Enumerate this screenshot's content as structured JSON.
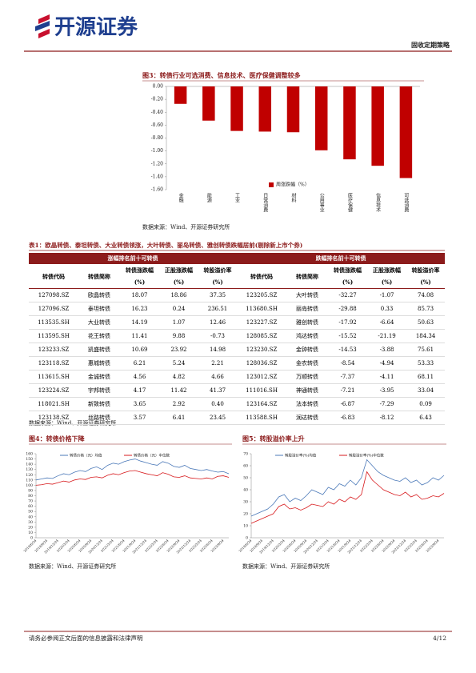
{
  "header": {
    "logo": "开源证券",
    "section": "固收定期策略"
  },
  "chart_data": [
    {
      "type": "bar",
      "title": "图3：转债行业可选消费、信息技术、医疗保健调整较多",
      "source": "数据来源：Wind、开源证券研究所",
      "categories": [
        "金融",
        "能源",
        "工业",
        "日常消费",
        "材料",
        "公用事业",
        "医疗保健",
        "信息技术",
        "可选消费"
      ],
      "series": [
        {
          "name": "周涨跌幅（%）",
          "color": "#c00000",
          "values": [
            -0.27,
            -0.53,
            -0.69,
            -0.7,
            -0.71,
            -0.99,
            -1.13,
            -1.23,
            -1.42
          ]
        }
      ],
      "ylim": [
        -1.6,
        0
      ],
      "yticks": [
        {
          "value": 0,
          "label": "0.00"
        },
        {
          "value": -0.2,
          "label": "-0.20"
        },
        {
          "value": -0.4,
          "label": "-0.40"
        },
        {
          "value": -0.6,
          "label": "-0.60"
        },
        {
          "value": -0.8,
          "label": "-0.80"
        },
        {
          "value": -1,
          "label": "-1.00"
        },
        {
          "value": -1.2,
          "label": "-1.20"
        },
        {
          "value": -1.4,
          "label": "-1.40"
        },
        {
          "value": -1.6,
          "label": "-1.60"
        }
      ]
    },
    {
      "type": "line",
      "title": "图4：转债价格下降",
      "source": "数据来源：Wind、开源证券研究所",
      "categories": [
        "2019/6/24",
        null,
        "2019/9/24",
        null,
        "2019/12/24",
        null,
        "2020/3/24",
        null,
        "2020/6/24",
        null,
        "2020/9/24",
        null,
        "2020/12/24",
        null,
        "2021/3/24",
        null,
        "2021/6/24",
        null,
        "2021/9/24",
        null,
        "2021/12/24",
        null,
        "2022/3/24",
        null,
        "2022/6/24",
        null,
        "2022/9/24",
        null,
        "2022/12/24",
        null,
        "2023/3/24",
        null,
        "2023/6/24",
        null,
        "2023/9/24",
        null
      ],
      "series": [
        {
          "name": "转债价格（元）均值",
          "color": "#4a78b8",
          "values": [
            110,
            112,
            114,
            113,
            118,
            122,
            120,
            125,
            128,
            126,
            132,
            135,
            130,
            138,
            142,
            140,
            145,
            148,
            150,
            146,
            143,
            140,
            138,
            145,
            142,
            136,
            134,
            138,
            132,
            130,
            128,
            130,
            127,
            125,
            126,
            122
          ]
        },
        {
          "name": "转债价格（元）中位数",
          "color": "#d7191c",
          "values": [
            100,
            101,
            103,
            102,
            105,
            108,
            106,
            110,
            112,
            111,
            115,
            116,
            114,
            119,
            122,
            120,
            124,
            127,
            128,
            125,
            122,
            120,
            118,
            124,
            121,
            116,
            115,
            118,
            114,
            113,
            112,
            114,
            112,
            117,
            118,
            115
          ]
        }
      ],
      "ylim": [
        0,
        160
      ],
      "yticks": [
        0,
        10,
        20,
        30,
        40,
        50,
        60,
        70,
        80,
        90,
        100,
        110,
        120,
        130,
        140,
        150,
        160
      ]
    },
    {
      "type": "line",
      "title": "图5：转股溢价率上升",
      "source": "数据来源：Wind、开源证券研究所",
      "categories": [
        "2019/6/24",
        null,
        "2019/9/24",
        null,
        "2019/12/24",
        null,
        "2020/3/24",
        null,
        "2020/6/24",
        null,
        "2020/9/24",
        null,
        "2020/12/24",
        null,
        "2021/3/24",
        null,
        "2021/6/24",
        null,
        "2021/9/24",
        null,
        "2021/12/24",
        null,
        "2022/3/24",
        null,
        "2022/6/24",
        null,
        "2022/9/24",
        null,
        "2022/12/24",
        null,
        "2023/3/24",
        null,
        "2023/6/24",
        null,
        "2023/9/24",
        null
      ],
      "series": [
        {
          "name": "转股溢价率(%)均值",
          "color": "#4a78b8",
          "values": [
            18,
            20,
            22,
            24,
            28,
            34,
            36,
            30,
            33,
            31,
            35,
            40,
            38,
            36,
            42,
            40,
            45,
            43,
            48,
            44,
            50,
            65,
            60,
            55,
            52,
            50,
            48,
            47,
            50,
            46,
            48,
            44,
            46,
            50,
            48,
            52
          ]
        },
        {
          "name": "转股溢价率(%)中位数",
          "color": "#d7191c",
          "values": [
            12,
            14,
            16,
            18,
            20,
            26,
            28,
            24,
            25,
            23,
            25,
            28,
            27,
            26,
            30,
            28,
            32,
            30,
            34,
            32,
            36,
            55,
            48,
            44,
            40,
            38,
            36,
            35,
            38,
            34,
            36,
            32,
            33,
            35,
            34,
            37
          ]
        }
      ],
      "ylim": [
        0,
        70
      ],
      "yticks": [
        0,
        10,
        20,
        30,
        40,
        50,
        60,
        70
      ]
    }
  ],
  "table": {
    "title": "表1：欧晶转债、泰坦转债、大业转债领涨，大叶转债、丽岛转债、雅创转债跌幅居前(剔除新上市个券)",
    "group_headers": [
      "涨幅排名前十可转债",
      "跌幅排名前十可转债"
    ],
    "headers": [
      "转债代码",
      "转债简称",
      "转债涨跌幅\n(%)",
      "正股涨跌幅\n(%)",
      "转股溢价率\n(%)",
      "转债代码",
      "转债简称",
      "转债涨跌幅\n(%)",
      "正股涨跌幅\n(%)",
      "转股溢价率\n(%)"
    ],
    "rows": [
      [
        "127098.SZ",
        "欧晶转债",
        "18.07",
        "18.86",
        "37.35",
        "123205.SZ",
        "大叶转债",
        "-32.27",
        "-1.07",
        "74.08"
      ],
      [
        "127096.SZ",
        "泰坦转债",
        "16.23",
        "0.24",
        "236.51",
        "113680.SH",
        "丽岛转债",
        "-29.88",
        "0.33",
        "85.73"
      ],
      [
        "113535.SH",
        "大业转债",
        "14.19",
        "1.07",
        "12.46",
        "123227.SZ",
        "雅创转债",
        "-17.92",
        "-6.64",
        "50.63"
      ],
      [
        "113595.SH",
        "花王转债",
        "11.41",
        "9.88",
        "-0.73",
        "128085.SZ",
        "鸿达转债",
        "-15.52",
        "-21.19",
        "184.34"
      ],
      [
        "123233.SZ",
        "凯盛转债",
        "10.69",
        "23.92",
        "14.98",
        "123230.SZ",
        "金钟转债",
        "-14.53",
        "-3.88",
        "75.61"
      ],
      [
        "123118.SZ",
        "惠城转债",
        "6.21",
        "5.24",
        "2.21",
        "128036.SZ",
        "金农转债",
        "-8.54",
        "-4.94",
        "53.33"
      ],
      [
        "113615.SH",
        "金诚转债",
        "4.56",
        "4.82",
        "4.66",
        "123012.SZ",
        "万顺转债",
        "-7.37",
        "-4.11",
        "68.11"
      ],
      [
        "123224.SZ",
        "宇邦转债",
        "4.17",
        "11.42",
        "41.37",
        "111016.SH",
        "神通转债",
        "-7.21",
        "-3.95",
        "33.04"
      ],
      [
        "118021.SH",
        "新致转债",
        "3.65",
        "2.92",
        "0.40",
        "123164.SZ",
        "法本转债",
        "-6.87",
        "-7.29",
        "0.09"
      ],
      [
        "123138.SZ",
        "丝路转债",
        "3.57",
        "6.41",
        "23.45",
        "113588.SH",
        "润达转债",
        "-6.83",
        "-8.12",
        "6.43"
      ]
    ],
    "source": "数据来源：Wind、开源证券研究所"
  },
  "footer": {
    "disclaimer": "请务必参阅正文后面的信息披露和法律声明",
    "page": "4/12"
  }
}
